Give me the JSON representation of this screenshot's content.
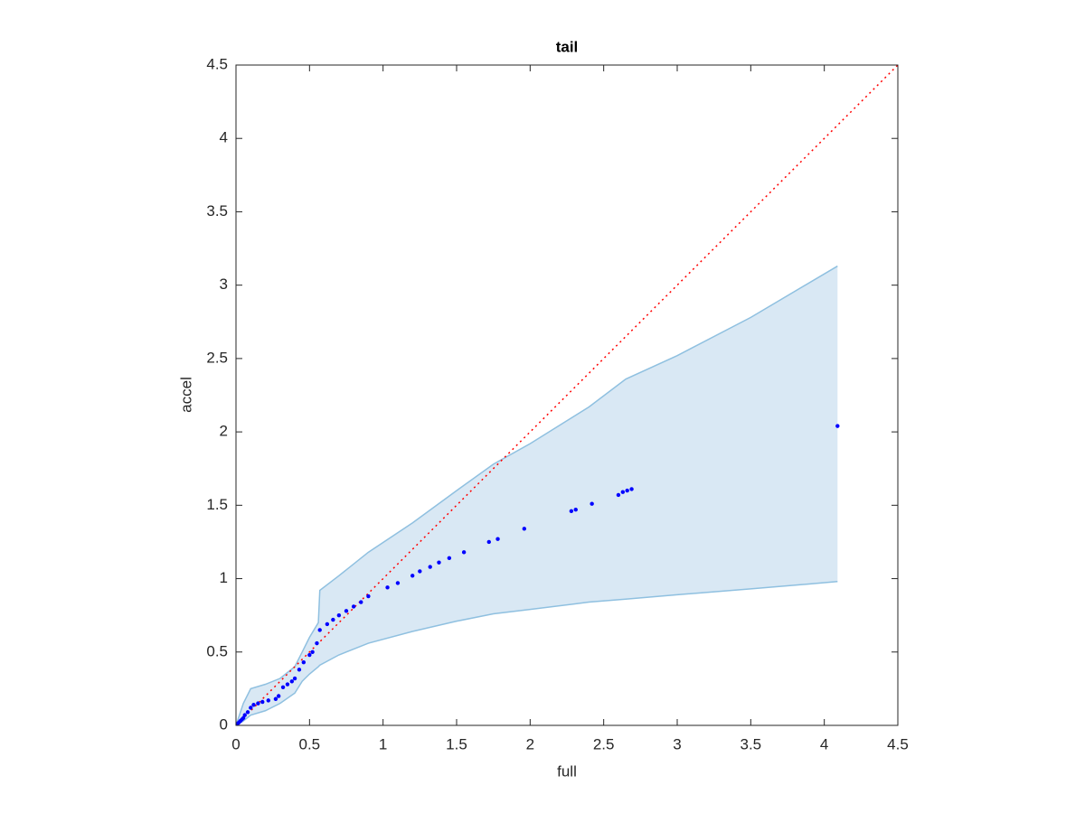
{
  "chart_data": {
    "type": "scatter",
    "title": "tail",
    "xlabel": "full",
    "ylabel": "accel",
    "xlim": [
      0,
      4.5
    ],
    "ylim": [
      0,
      4.5
    ],
    "xticks": [
      0,
      0.5,
      1,
      1.5,
      2,
      2.5,
      3,
      3.5,
      4,
      4.5
    ],
    "yticks": [
      0,
      0.5,
      1,
      1.5,
      2,
      2.5,
      3,
      3.5,
      4,
      4.5
    ],
    "points": {
      "color": "#0000ff",
      "x": [
        0.01,
        0.02,
        0.03,
        0.04,
        0.05,
        0.06,
        0.08,
        0.1,
        0.12,
        0.15,
        0.18,
        0.22,
        0.27,
        0.29,
        0.32,
        0.35,
        0.38,
        0.4,
        0.43,
        0.46,
        0.5,
        0.52,
        0.55,
        0.57,
        0.62,
        0.66,
        0.7,
        0.75,
        0.8,
        0.85,
        0.9,
        1.03,
        1.1,
        1.2,
        1.25,
        1.32,
        1.38,
        1.45,
        1.55,
        1.72,
        1.78,
        1.96,
        2.28,
        2.31,
        2.42,
        2.6,
        2.63,
        2.66,
        2.69,
        4.09
      ],
      "y": [
        0.01,
        0.02,
        0.03,
        0.04,
        0.05,
        0.07,
        0.09,
        0.12,
        0.14,
        0.15,
        0.16,
        0.17,
        0.18,
        0.2,
        0.26,
        0.28,
        0.3,
        0.32,
        0.38,
        0.43,
        0.48,
        0.5,
        0.56,
        0.65,
        0.69,
        0.72,
        0.75,
        0.78,
        0.81,
        0.84,
        0.88,
        0.94,
        0.97,
        1.02,
        1.05,
        1.08,
        1.11,
        1.14,
        1.18,
        1.25,
        1.27,
        1.34,
        1.46,
        1.47,
        1.51,
        1.57,
        1.59,
        1.6,
        1.61,
        2.04
      ]
    },
    "band": {
      "color": "#d9e8f4",
      "edge_color": "#8fc0e0",
      "x": [
        0,
        0.05,
        0.1,
        0.2,
        0.3,
        0.4,
        0.45,
        0.5,
        0.56,
        0.57,
        0.7,
        0.9,
        1.2,
        1.5,
        1.75,
        2,
        2.4,
        2.65,
        3,
        3.5,
        4.09
      ],
      "upper": [
        0,
        0.15,
        0.25,
        0.28,
        0.32,
        0.4,
        0.5,
        0.6,
        0.7,
        0.92,
        1.02,
        1.18,
        1.38,
        1.6,
        1.78,
        1.92,
        2.17,
        2.36,
        2.52,
        2.78,
        3.13
      ],
      "lower": [
        0,
        0.03,
        0.07,
        0.1,
        0.15,
        0.22,
        0.3,
        0.35,
        0.4,
        0.41,
        0.48,
        0.56,
        0.64,
        0.71,
        0.76,
        0.79,
        0.84,
        0.86,
        0.89,
        0.93,
        0.98
      ]
    },
    "reference_line": {
      "color": "#ff0000",
      "style": "dotted",
      "x": [
        0,
        4.5
      ],
      "y": [
        0,
        4.5
      ]
    }
  }
}
